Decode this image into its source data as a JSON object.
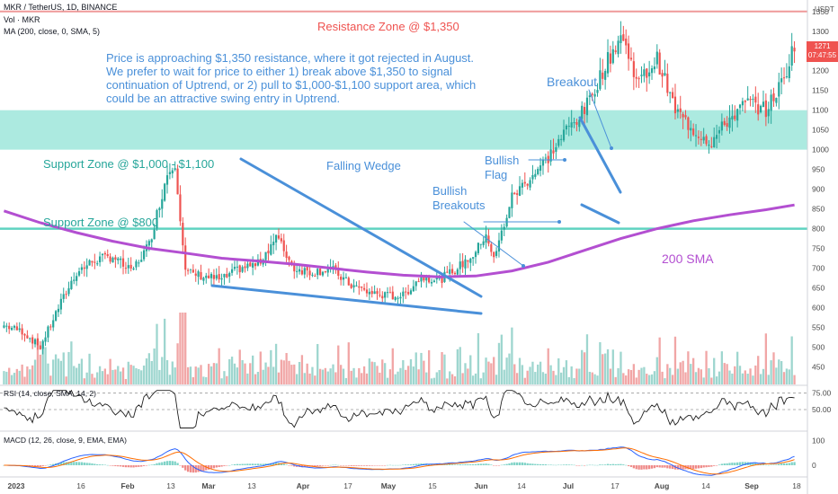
{
  "header": {
    "symbol_line": "MKR / TetherUS, 1D, BINANCE",
    "vol_line": "Vol · MKR",
    "ma_line": "MA (200, close, 0, SMA, 5)",
    "currency": "USDT",
    "rsi_line": "RSI (14, close, SMA, 14, 2)",
    "macd_line": "MACD (12, 26, close, 9, EMA, EMA)"
  },
  "price_tag": {
    "value": "1271",
    "countdown": "07:47:55"
  },
  "annotations": {
    "resistance": "Resistance Zone @ $1,350",
    "note_lines": [
      "Price is approaching $1,350 resistance, where it got rejected in August.",
      "We prefer to wait for price to either 1) break above $1,350 to signal",
      "continuation of Uptrend, or 2) pull to $1,000-$1,100 support area, which",
      "could be an attractive swing entry in Uptrend."
    ],
    "support_high": "Support Zone @ $1,000 - $1,100",
    "support_low": "Support Zone @ $800",
    "falling_wedge": "Falling Wedge",
    "bullish_breakouts": [
      "Bullish",
      "Breakouts"
    ],
    "bullish_flag": [
      "Bullish",
      "Flag"
    ],
    "breakout": "Breakout",
    "sma": "200 SMA"
  },
  "colors": {
    "up": "#26a69a",
    "down": "#ef5350",
    "zone": "#9ee6da",
    "sma": "#b34fd1",
    "resistance": "#ef9a9a",
    "annotation_blue": "#4a90d9",
    "annotation_green": "#26a69a",
    "vol_up": "#9ed6cf",
    "vol_down": "#f1a6a6"
  },
  "chart_data": {
    "type": "candlestick",
    "y_price_ticks": [
      450,
      500,
      550,
      600,
      650,
      700,
      750,
      800,
      850,
      900,
      950,
      1000,
      1050,
      1100,
      1150,
      1200,
      1250,
      1300,
      1350
    ],
    "ylim": [
      410,
      1370
    ],
    "x_tick_labels": [
      "2023",
      "16",
      "Feb",
      "13",
      "Mar",
      "13",
      "Apr",
      "17",
      "May",
      "15",
      "Jun",
      "14",
      "Jul",
      "17",
      "Aug",
      "14",
      "Sep",
      "18"
    ],
    "resistance_level": 1350,
    "support_zone": [
      1000,
      1100
    ],
    "support_level": 800,
    "last_price": 1271,
    "close_series": [
      [
        0,
        555
      ],
      [
        7,
        540
      ],
      [
        14,
        500
      ],
      [
        21,
        600
      ],
      [
        28,
        690
      ],
      [
        35,
        720
      ],
      [
        42,
        730
      ],
      [
        49,
        690
      ],
      [
        56,
        760
      ],
      [
        63,
        940
      ],
      [
        66,
        970
      ],
      [
        70,
        690
      ],
      [
        77,
        680
      ],
      [
        84,
        670
      ],
      [
        91,
        700
      ],
      [
        98,
        710
      ],
      [
        105,
        780
      ],
      [
        112,
        700
      ],
      [
        119,
        690
      ],
      [
        126,
        700
      ],
      [
        133,
        660
      ],
      [
        140,
        640
      ],
      [
        147,
        630
      ],
      [
        154,
        630
      ],
      [
        161,
        680
      ],
      [
        168,
        670
      ],
      [
        175,
        700
      ],
      [
        182,
        740
      ],
      [
        186,
        790
      ],
      [
        189,
        720
      ],
      [
        196,
        880
      ],
      [
        203,
        930
      ],
      [
        210,
        980
      ],
      [
        217,
        1050
      ],
      [
        224,
        1100
      ],
      [
        231,
        1200
      ],
      [
        238,
        1290
      ],
      [
        245,
        1170
      ],
      [
        252,
        1230
      ],
      [
        259,
        1100
      ],
      [
        266,
        1050
      ],
      [
        273,
        1020
      ],
      [
        280,
        1080
      ],
      [
        287,
        1120
      ],
      [
        294,
        1100
      ],
      [
        301,
        1180
      ],
      [
        305,
        1271
      ]
    ],
    "sma200": [
      [
        0,
        845
      ],
      [
        14,
        815
      ],
      [
        28,
        790
      ],
      [
        42,
        768
      ],
      [
        56,
        750
      ],
      [
        70,
        738
      ],
      [
        84,
        725
      ],
      [
        98,
        718
      ],
      [
        112,
        710
      ],
      [
        126,
        700
      ],
      [
        140,
        690
      ],
      [
        154,
        682
      ],
      [
        168,
        678
      ],
      [
        182,
        680
      ],
      [
        196,
        693
      ],
      [
        210,
        715
      ],
      [
        224,
        745
      ],
      [
        238,
        775
      ],
      [
        252,
        800
      ],
      [
        266,
        820
      ],
      [
        280,
        835
      ],
      [
        294,
        848
      ],
      [
        305,
        860
      ]
    ],
    "rsi": {
      "levels": [
        50,
        75
      ],
      "range": [
        20,
        80
      ]
    },
    "macd": {
      "ticks": [
        0,
        100
      ],
      "range": [
        -40,
        120
      ]
    }
  }
}
